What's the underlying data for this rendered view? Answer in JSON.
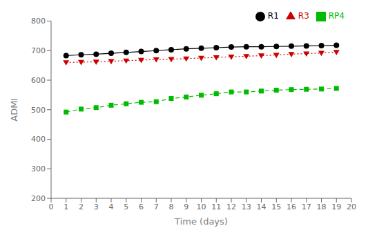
{
  "chart_data": {
    "type": "line",
    "xlabel": "Time (days)",
    "ylabel": "ADMI",
    "x": [
      1,
      2,
      3,
      4,
      5,
      6,
      7,
      8,
      9,
      10,
      11,
      12,
      13,
      14,
      15,
      16,
      17,
      18,
      19
    ],
    "series": [
      {
        "name": "R1",
        "color": "#000000",
        "marker": "circle",
        "line_style": "solid",
        "values": [
          683,
          686,
          688,
          691,
          694,
          697,
          700,
          703,
          706,
          708,
          710,
          712,
          713,
          713,
          714,
          715,
          716,
          717,
          718
        ]
      },
      {
        "name": "R3",
        "color": "#cc0000",
        "marker": "triangle-down",
        "line_style": "dotted",
        "values": [
          660,
          661,
          662,
          664,
          666,
          668,
          670,
          671,
          673,
          675,
          677,
          679,
          681,
          683,
          685,
          688,
          690,
          692,
          695
        ]
      },
      {
        "name": "RP4",
        "color": "#00bb00",
        "marker": "square",
        "line_style": "dashed",
        "values": [
          492,
          502,
          507,
          515,
          520,
          525,
          527,
          538,
          543,
          549,
          554,
          560,
          560,
          563,
          566,
          568,
          569,
          570,
          572
        ]
      }
    ],
    "xlim": [
      0,
      20
    ],
    "ylim": [
      200,
      800
    ],
    "xticks": [
      0,
      1,
      2,
      3,
      4,
      5,
      6,
      7,
      8,
      9,
      10,
      11,
      12,
      13,
      14,
      15,
      16,
      17,
      18,
      19,
      20
    ],
    "yticks": [
      200,
      300,
      400,
      500,
      600,
      700,
      800
    ],
    "grid": false,
    "legend": "upper right"
  }
}
